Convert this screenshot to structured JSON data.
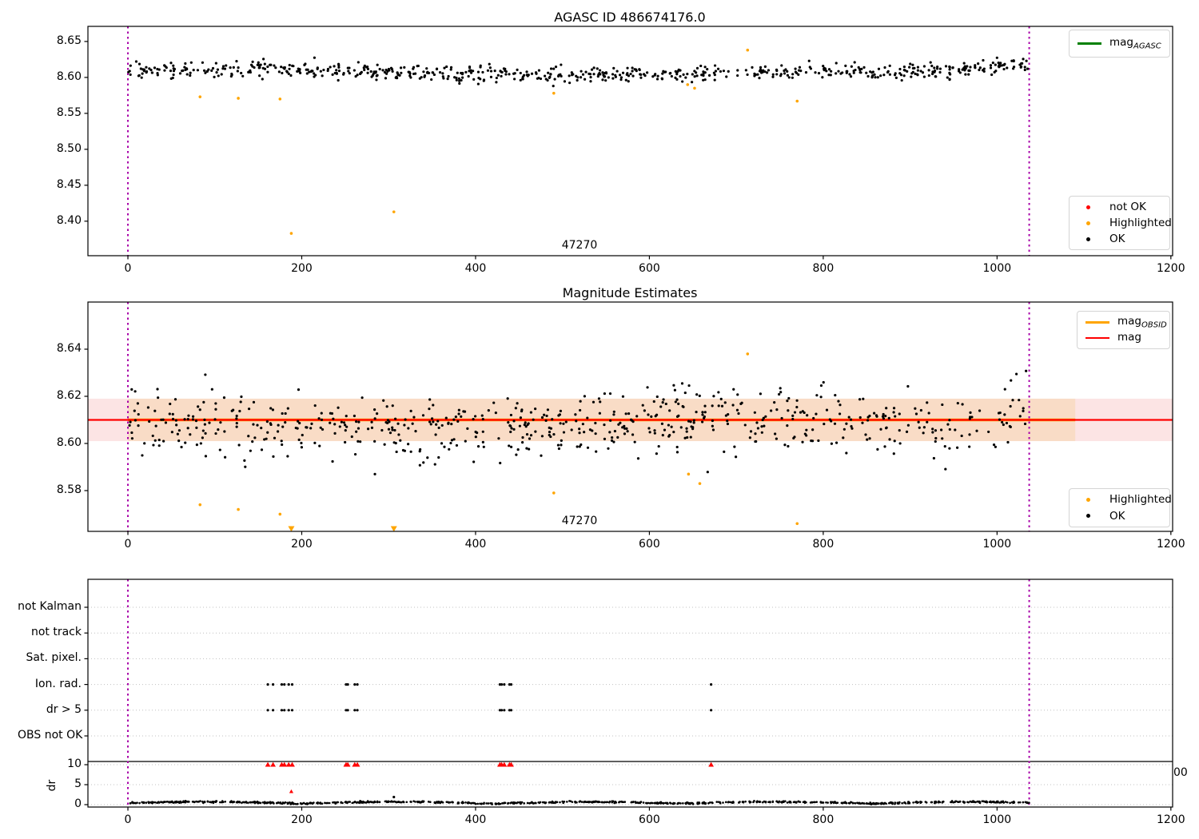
{
  "figure": {
    "background": "#ffffff"
  },
  "colors": {
    "magenta_line": "#a800a8",
    "orange": "#ffa500",
    "red": "#ff0000",
    "green": "#008000",
    "black": "#000000",
    "band_pink": "#fce4e4",
    "band_peach": "#f9dcc6",
    "grid": "#c0c0c0",
    "legend_border": "#d4d4d4"
  },
  "panels": {
    "top": {
      "title": "AGASC ID 486674176.0",
      "xtick_labels": [
        "0",
        "200",
        "400",
        "600",
        "800",
        "1000",
        "1200"
      ],
      "xtick_values": [
        0,
        200,
        400,
        600,
        800,
        1000,
        1200
      ],
      "ytick_labels": [
        "8.65",
        "8.60",
        "8.55",
        "8.50",
        "8.45",
        "8.40"
      ],
      "ytick_values": [
        8.65,
        8.6,
        8.55,
        8.5,
        8.45,
        8.4
      ],
      "annotation": "47270",
      "legend_line": [
        {
          "label": "mag",
          "sub": "AGASC",
          "color": "#008000"
        }
      ],
      "legend_markers": [
        {
          "label": "not OK",
          "color": "#ff0000"
        },
        {
          "label": "Highlighted",
          "color": "#ffa500"
        },
        {
          "label": "OK",
          "color": "#000000"
        }
      ]
    },
    "middle": {
      "title": "Magnitude Estimates",
      "xtick_labels": [
        "0",
        "200",
        "400",
        "600",
        "800",
        "1000",
        "1200"
      ],
      "xtick_values": [
        0,
        200,
        400,
        600,
        800,
        1000,
        1200
      ],
      "ytick_labels": [
        "8.64",
        "8.62",
        "8.60",
        "8.58"
      ],
      "ytick_values": [
        8.64,
        8.62,
        8.6,
        8.58
      ],
      "annotation": "47270",
      "legend_line": [
        {
          "label": "mag",
          "sub": "OBSID",
          "color": "#ffa500"
        },
        {
          "label": "mag",
          "sub": "",
          "color": "#ff0000"
        }
      ],
      "legend_markers": [
        {
          "label": "Highlighted",
          "color": "#ffa500"
        },
        {
          "label": "OK",
          "color": "#000000"
        }
      ]
    },
    "bottom": {
      "categories": [
        "not Kalman",
        "not track",
        "Sat. pixel.",
        "Ion. rad.",
        "dr > 5",
        "OBS not OK"
      ],
      "xtick_labels": [
        "0",
        "200",
        "400",
        "600",
        "800",
        "1000",
        "1200"
      ],
      "xtick_values": [
        0,
        200,
        400,
        600,
        800,
        1000,
        1200
      ],
      "dr_label": "dr",
      "dr_tick_labels": [
        "10",
        "5",
        "0"
      ],
      "dr_tick_values": [
        10,
        5,
        0
      ],
      "clipped_label": "00"
    }
  },
  "chart_data": [
    {
      "type": "scatter",
      "title": "AGASC ID 486674176.0",
      "xlabel": "",
      "ylabel": "",
      "xlim": [
        -46,
        1202
      ],
      "ylim": [
        8.352,
        8.671
      ],
      "grid": false,
      "legend_position": "upper right",
      "vlines_x": [
        0,
        1037
      ],
      "annotation": {
        "x": 520,
        "label": "47270"
      },
      "series": [
        {
          "name": "OK",
          "marker": "point",
          "color": "#000000",
          "generated": {
            "n": 680,
            "x_min": 0,
            "x_max": 1037,
            "mean": 8.607,
            "sigma": 0.0055,
            "seed": 11
          }
        },
        {
          "name": "Highlighted",
          "marker": "point",
          "color": "#ffa500",
          "points": [
            [
              83,
              8.573
            ],
            [
              127,
              8.571
            ],
            [
              175,
              8.57
            ],
            [
              188,
              8.383
            ],
            [
              306,
              8.413
            ],
            [
              490,
              8.578
            ],
            [
              644,
              8.59
            ],
            [
              652,
              8.585
            ],
            [
              713,
              8.638
            ],
            [
              770,
              8.567
            ]
          ]
        }
      ],
      "legend_entries": [
        "mag_AGASC"
      ]
    },
    {
      "type": "scatter",
      "title": "Magnitude Estimates",
      "xlabel": "",
      "ylabel": "",
      "xlim": [
        -46,
        1202
      ],
      "ylim": [
        8.5627,
        8.66
      ],
      "grid": false,
      "mag_line": 8.61,
      "mag_band": [
        8.601,
        8.619
      ],
      "obsid_band_x": [
        0,
        1090
      ],
      "vlines_x": [
        0,
        1037
      ],
      "annotation": {
        "x": 520,
        "label": "47270"
      },
      "series": [
        {
          "name": "OK",
          "marker": "point",
          "color": "#000000",
          "generated": {
            "n": 640,
            "x_min": 0,
            "x_max": 1037,
            "mean": 8.6085,
            "sigma": 0.0068,
            "seed": 7
          }
        },
        {
          "name": "Highlighted",
          "marker": "point",
          "color": "#ffa500",
          "points": [
            [
              83,
              8.574
            ],
            [
              127,
              8.572
            ],
            [
              175,
              8.57
            ],
            [
              490,
              8.579
            ],
            [
              645,
              8.587
            ],
            [
              658,
              8.583
            ],
            [
              713,
              8.638
            ],
            [
              770,
              8.566
            ]
          ]
        },
        {
          "name": "Highlighted clipped low",
          "marker": "triangle-down",
          "color": "#ffa500",
          "points_x": [
            188,
            306
          ]
        }
      ],
      "legend_entries": [
        "mag_OBSID",
        "mag",
        "Highlighted",
        "OK"
      ]
    },
    {
      "type": "categorical-flags-with-dr-inset",
      "categories": [
        "not Kalman",
        "not track",
        "Sat. pixel.",
        "Ion. rad.",
        "dr > 5",
        "OBS not OK"
      ],
      "xlim": [
        -46,
        1202
      ],
      "grid": true,
      "vlines_x": [
        0,
        1037
      ],
      "flag_rows_with_points": [
        "Ion. rad.",
        "dr > 5"
      ],
      "flag_x": [
        161,
        167,
        177,
        180,
        185,
        189,
        251,
        253,
        261,
        264,
        428,
        430,
        433,
        439,
        441,
        671
      ],
      "dr_inset": {
        "ylabel": "dr",
        "ylim": [
          0,
          11.4
        ],
        "ticks": [
          0,
          5,
          10
        ],
        "separator_line_y": 10.8,
        "clipped_high_x": [
          161,
          167,
          177,
          180,
          185,
          189,
          251,
          253,
          261,
          264,
          428,
          430,
          433,
          439,
          441,
          671
        ],
        "outliers": [
          {
            "x": 188,
            "y": 3.3,
            "color": "#ff0000",
            "marker": "triangle-up"
          },
          {
            "x": 306,
            "y": 1.9,
            "color": "#000000",
            "marker": "point"
          }
        ],
        "generated": {
          "n": 900,
          "x_min": 0,
          "x_max": 1037,
          "base": 0.5,
          "amp": 0.45,
          "sigma": 0.1,
          "seed": 23
        }
      }
    }
  ]
}
